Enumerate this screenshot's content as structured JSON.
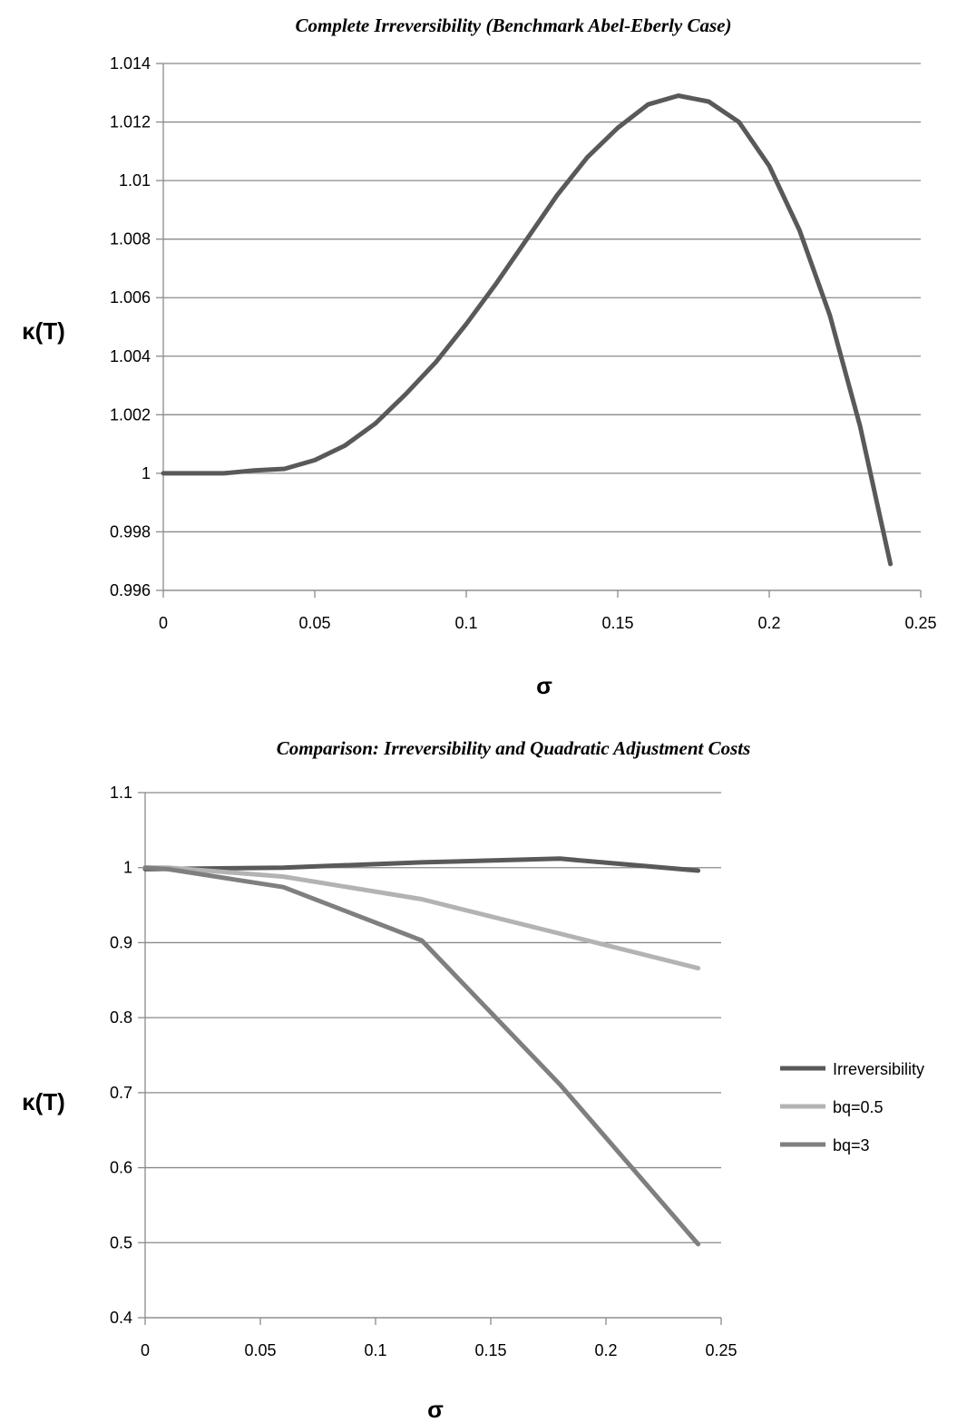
{
  "chart_data": [
    {
      "type": "line",
      "title": "Complete Irreversibility (Benchmark Abel-Eberly Case)",
      "xlabel": "σ",
      "ylabel": "κ(T)",
      "xlim": [
        0,
        0.25
      ],
      "ylim": [
        0.996,
        1.014
      ],
      "x_ticks": [
        "0",
        "0.05",
        "0.1",
        "0.15",
        "0.2",
        "0.25"
      ],
      "y_ticks": [
        "0.996",
        "0.998",
        "1",
        "1.002",
        "1.004",
        "1.006",
        "1.008",
        "1.01",
        "1.012",
        "1.014"
      ],
      "grid": true,
      "legend": "none",
      "colors": {
        "series": "#595959"
      },
      "series": [
        {
          "x": [
            0,
            0.01,
            0.02,
            0.03,
            0.04,
            0.05,
            0.06,
            0.07,
            0.08,
            0.09,
            0.1,
            0.11,
            0.12,
            0.13,
            0.14,
            0.15,
            0.16,
            0.17,
            0.18,
            0.19,
            0.2,
            0.21,
            0.22,
            0.23,
            0.24
          ],
          "y": [
            1.0,
            1.0,
            1.0,
            1.0001,
            1.00015,
            1.00045,
            1.00095,
            1.0017,
            1.0027,
            1.0038,
            1.0051,
            1.0065,
            1.008,
            1.0095,
            1.0108,
            1.0118,
            1.0126,
            1.0129,
            1.0127,
            1.012,
            1.0105,
            1.0083,
            1.0054,
            1.0016,
            0.9969
          ]
        }
      ]
    },
    {
      "type": "line",
      "title": "Comparison: Irreversibility and Quadratic Adjustment Costs",
      "xlabel": "σ",
      "ylabel": "κ(T)",
      "xlim": [
        0,
        0.25
      ],
      "ylim": [
        0.4,
        1.1
      ],
      "x_ticks": [
        "0",
        "0.05",
        "0.1",
        "0.15",
        "0.2",
        "0.25"
      ],
      "y_ticks": [
        "0.4",
        "0.5",
        "0.6",
        "0.7",
        "0.8",
        "0.9",
        "1",
        "1.1"
      ],
      "grid": true,
      "legend": "right",
      "series": [
        {
          "name": "Irreversibility",
          "color": "#595959",
          "x": [
            0,
            0.06,
            0.12,
            0.18,
            0.24
          ],
          "y": [
            0.998,
            1.0,
            1.007,
            1.012,
            0.996
          ]
        },
        {
          "name": "bq=0.5",
          "color": "#b3b3b3",
          "x": [
            0,
            0.01,
            0.06,
            0.12,
            0.18,
            0.24
          ],
          "y": [
            1.0,
            1.0,
            0.988,
            0.958,
            0.912,
            0.866
          ]
        },
        {
          "name": "bq=3",
          "color": "#7f7f7f",
          "x": [
            0,
            0.01,
            0.06,
            0.12,
            0.18,
            0.24
          ],
          "y": [
            1.0,
            0.998,
            0.974,
            0.903,
            0.711,
            0.498
          ]
        }
      ]
    }
  ]
}
